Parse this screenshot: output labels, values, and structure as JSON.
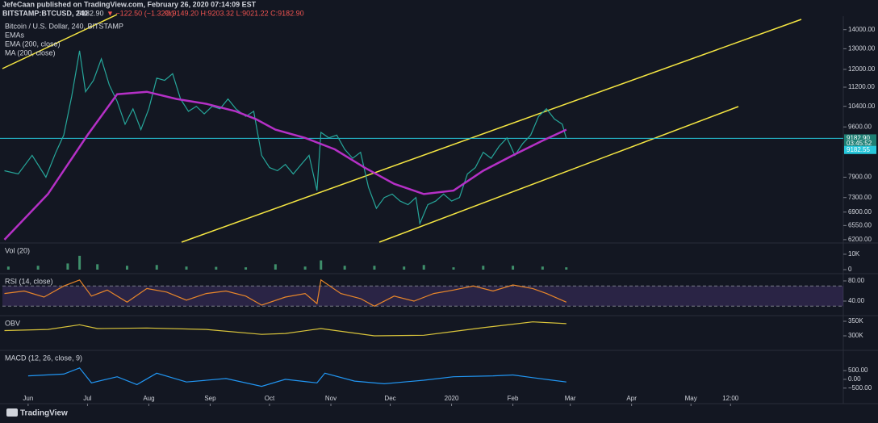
{
  "header": {
    "author_line": "JefeCaan published on TradingView.com, February 26, 2020 07:14:09 EST",
    "symbol": "BITSTAMP:BTCUSD, 240",
    "price": "9182.90",
    "change": "▼ −122.50 (−1.32%)",
    "ohlc": "O:9149.20 H:9203.32 L:9021.22 C:9182.90"
  },
  "footer": "TradingView",
  "x_axis": {
    "xlim": [
      -13,
      412
    ],
    "xticks": [
      {
        "value": 0,
        "label": "Jun"
      },
      {
        "value": 30,
        "label": "Jul"
      },
      {
        "value": 61,
        "label": "Aug"
      },
      {
        "value": 92,
        "label": "Sep"
      },
      {
        "value": 122,
        "label": "Oct"
      },
      {
        "value": 153,
        "label": "Nov"
      },
      {
        "value": 183,
        "label": "Dec"
      },
      {
        "value": 214,
        "label": "2020"
      },
      {
        "value": 245,
        "label": "Feb"
      },
      {
        "value": 274,
        "label": "Mar"
      },
      {
        "value": 305,
        "label": "Apr"
      },
      {
        "value": 335,
        "label": "May"
      },
      {
        "value": 355,
        "label": "12:00"
      }
    ]
  },
  "chart_data": [
    {
      "type": "line",
      "title": "Bitcoin / U.S. Dollar, 240, BITSTAMP",
      "legend": [
        "EMAs",
        "EMA (200, close)",
        "MA (200, close)"
      ],
      "log_scale": true,
      "ylim": [
        6140,
        14660
      ],
      "yticks": [
        {
          "value": 14000,
          "label": "14000.00"
        },
        {
          "value": 13000,
          "label": "13000.00"
        },
        {
          "value": 12000,
          "label": "12000.00"
        },
        {
          "value": 11200,
          "label": "11200.00"
        },
        {
          "value": 10400,
          "label": "10400.00"
        },
        {
          "value": 9600,
          "label": "9600.00"
        },
        {
          "value": 7900,
          "label": "7900.00"
        },
        {
          "value": 7300,
          "label": "7300.00"
        },
        {
          "value": 6900,
          "label": "6900.00"
        },
        {
          "value": 6550,
          "label": "6550.00"
        },
        {
          "value": 6200,
          "label": "6200.00"
        }
      ],
      "hline": {
        "value": 9182.9,
        "color": "#26c6da"
      },
      "price_tags": [
        {
          "value": 9182.9,
          "label": "9182.90",
          "color": "#1e7f74"
        },
        {
          "value": 9000,
          "label": "03:45:52",
          "color": "#1e7f74"
        },
        {
          "value": 8780,
          "label": "9182.55",
          "color": "#26c6da"
        }
      ],
      "series": [
        {
          "color": "#26a69a",
          "x": [
            -12,
            -5,
            2,
            9,
            14,
            18,
            22,
            26,
            29,
            33,
            37,
            41,
            45,
            49,
            53,
            57,
            61,
            65,
            69,
            73,
            77,
            81,
            85,
            89,
            93,
            97,
            101,
            105,
            110,
            114,
            118,
            122,
            126,
            130,
            134,
            138,
            142,
            146,
            148,
            152,
            156,
            160,
            164,
            168,
            172,
            176,
            180,
            184,
            188,
            192,
            196,
            198,
            202,
            206,
            210,
            214,
            218,
            222,
            226,
            230,
            234,
            238,
            242,
            246,
            250,
            254,
            258,
            262,
            266,
            270,
            272
          ],
          "values": [
            8100,
            8000,
            8600,
            7900,
            8700,
            9300,
            10800,
            12900,
            11000,
            11500,
            12500,
            11300,
            10600,
            9700,
            10300,
            9500,
            10300,
            11600,
            11500,
            11800,
            10700,
            10200,
            10400,
            10100,
            10400,
            10300,
            10700,
            10300,
            10000,
            10200,
            8600,
            8200,
            8100,
            8300,
            8000,
            8300,
            8600,
            7500,
            9400,
            9200,
            9300,
            8800,
            8500,
            8700,
            7600,
            7000,
            7300,
            7400,
            7200,
            7100,
            7300,
            6600,
            7100,
            7200,
            7400,
            7200,
            7300,
            8000,
            8200,
            8700,
            8500,
            8900,
            9200,
            8600,
            9000,
            9300,
            10000,
            10300,
            9900,
            9700,
            9180
          ]
        },
        {
          "color": "#b530c6",
          "x": [
            -12,
            10,
            30,
            45,
            60,
            75,
            90,
            105,
            115,
            125,
            140,
            155,
            170,
            185,
            200,
            215,
            230,
            245,
            260,
            272
          ],
          "values": [
            6200,
            7400,
            9300,
            10900,
            11000,
            10700,
            10500,
            10200,
            9900,
            9500,
            9200,
            8800,
            8200,
            7700,
            7400,
            7500,
            8100,
            8600,
            9100,
            9500
          ]
        }
      ]
    },
    {
      "type": "bar",
      "title": "Vol (20)",
      "ylim": [
        0,
        16800
      ],
      "yticks": [
        {
          "value": 10000,
          "label": "10K"
        },
        0
      ],
      "series": [
        {
          "color": "#3f8f6b",
          "x": [
            -10,
            5,
            20,
            26,
            35,
            50,
            65,
            80,
            95,
            110,
            125,
            140,
            148,
            160,
            175,
            190,
            200,
            215,
            230,
            245,
            260,
            272
          ],
          "values": [
            2000,
            2500,
            4000,
            9000,
            3500,
            2500,
            3000,
            2000,
            1800,
            1500,
            3500,
            2000,
            6000,
            2500,
            2500,
            2000,
            3000,
            1500,
            2500,
            2500,
            2000,
            1500
          ]
        }
      ]
    },
    {
      "type": "line",
      "title": "RSI (14, close)",
      "ylim": [
        12.8,
        92.8
      ],
      "yticks": [
        {
          "value": 80,
          "label": "80.00"
        },
        {
          "value": 40,
          "label": "40.00"
        }
      ],
      "band": [
        30,
        70
      ],
      "series": [
        {
          "color": "#e8862a",
          "x": [
            -12,
            -2,
            8,
            18,
            26,
            32,
            40,
            50,
            60,
            70,
            80,
            90,
            100,
            110,
            118,
            130,
            140,
            146,
            148,
            158,
            168,
            175,
            185,
            195,
            205,
            215,
            225,
            235,
            245,
            255,
            262,
            272
          ],
          "values": [
            55,
            60,
            48,
            70,
            82,
            50,
            62,
            38,
            65,
            58,
            42,
            55,
            60,
            50,
            32,
            48,
            55,
            35,
            82,
            55,
            45,
            30,
            50,
            40,
            55,
            62,
            70,
            60,
            72,
            65,
            55,
            38
          ]
        }
      ]
    },
    {
      "type": "line",
      "title": "OBV",
      "ylim": [
        252800,
        366700
      ],
      "yticks": [
        {
          "value": 350000,
          "label": "350K"
        },
        {
          "value": 300000,
          "label": "300K"
        }
      ],
      "series": [
        {
          "color": "#d9c43b",
          "x": [
            -12,
            10,
            26,
            35,
            60,
            90,
            118,
            130,
            148,
            175,
            200,
            215,
            230,
            245,
            255,
            272
          ],
          "values": [
            318000,
            322000,
            338000,
            325000,
            327000,
            322000,
            305000,
            308000,
            325000,
            300000,
            302000,
            315000,
            328000,
            340000,
            348000,
            342000
          ]
        }
      ]
    },
    {
      "type": "line",
      "title": "MACD (12, 26, close, 9)",
      "ylim": [
        -833,
        1611
      ],
      "yticks": [
        {
          "value": 500,
          "label": "500.00"
        },
        {
          "value": 0,
          "label": "0.00"
        },
        {
          "value": -500,
          "label": "−500.00"
        }
      ],
      "series": [
        {
          "color": "#2196f3",
          "x": [
            0,
            18,
            26,
            32,
            45,
            55,
            65,
            80,
            100,
            118,
            130,
            146,
            150,
            165,
            180,
            200,
            215,
            235,
            245,
            255,
            265,
            272
          ],
          "values": [
            200,
            300,
            650,
            -200,
            150,
            -300,
            350,
            -150,
            50,
            -400,
            0,
            -200,
            350,
            -100,
            -250,
            -50,
            150,
            200,
            250,
            100,
            -50,
            -150
          ]
        }
      ]
    }
  ]
}
